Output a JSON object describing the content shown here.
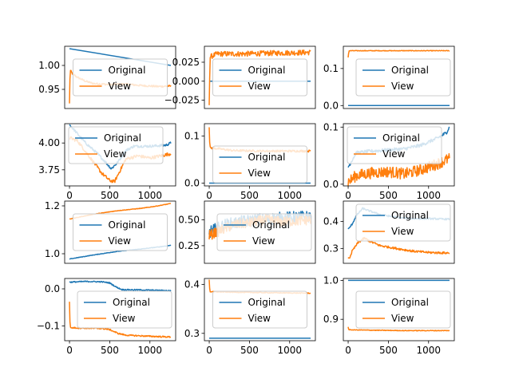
{
  "colors": {
    "original": "#1f77b4",
    "view": "#ff7f0e",
    "frame": "#000000",
    "background": "#ffffff"
  },
  "legend_labels": [
    "Original",
    "View"
  ],
  "chart_data": [
    {
      "type": "line",
      "xlim": [
        -60,
        1320
      ],
      "ylim": [
        0.91,
        1.04
      ],
      "xticks": [],
      "xtick_labels": [],
      "yticks": [
        0.95,
        1.0
      ],
      "ytick_labels": [
        "0.95",
        "1.00"
      ],
      "legend_loc": "center",
      "series": [
        {
          "name": "Original",
          "points": [
            [
              0,
              1.035
            ],
            [
              50,
              1.03
            ],
            [
              100,
              1.022
            ],
            [
              150,
              1.014
            ],
            [
              200,
              1.007
            ],
            [
              250,
              1.0
            ],
            [
              1260,
              1.0
            ]
          ]
        },
        {
          "name": "View",
          "points": [
            [
              0,
              0.92
            ],
            [
              8,
              0.99
            ],
            [
              40,
              0.982
            ],
            [
              100,
              0.975
            ],
            [
              200,
              0.967
            ],
            [
              300,
              0.962
            ],
            [
              500,
              0.96
            ],
            [
              700,
              0.961
            ],
            [
              900,
              0.958
            ],
            [
              1100,
              0.956
            ],
            [
              1260,
              0.957
            ]
          ],
          "noise": 0.002
        }
      ]
    },
    {
      "type": "line",
      "xlim": [
        -60,
        1320
      ],
      "ylim": [
        -0.036,
        0.046
      ],
      "xticks": [],
      "xtick_labels": [],
      "yticks": [
        -0.025,
        0.0,
        0.025
      ],
      "ytick_labels": [
        "−0.025",
        "0.000",
        "0.025"
      ],
      "legend_loc": "center",
      "series": [
        {
          "name": "Original",
          "points": [
            [
              0,
              0.0
            ],
            [
              1260,
              0.0
            ]
          ]
        },
        {
          "name": "View",
          "points": [
            [
              0,
              -0.03
            ],
            [
              10,
              0.032
            ],
            [
              100,
              0.036
            ],
            [
              400,
              0.036
            ],
            [
              800,
              0.037
            ],
            [
              1260,
              0.038
            ]
          ],
          "noise": 0.0035
        }
      ]
    },
    {
      "type": "line",
      "xlim": [
        -60,
        1320
      ],
      "ylim": [
        -0.008,
        0.16
      ],
      "xticks": [],
      "xtick_labels": [],
      "yticks": [
        0.0,
        0.1
      ],
      "ytick_labels": [
        "0.0",
        "0.1"
      ],
      "legend_loc": "center right",
      "series": [
        {
          "name": "Original",
          "points": [
            [
              0,
              0.0
            ],
            [
              1260,
              0.0
            ]
          ]
        },
        {
          "name": "View",
          "points": [
            [
              0,
              0.13
            ],
            [
              10,
              0.148
            ],
            [
              1260,
              0.148
            ]
          ],
          "noise": 0.0008
        }
      ]
    },
    {
      "type": "line",
      "xlim": [
        -60,
        1320
      ],
      "ylim": [
        3.6,
        4.18
      ],
      "xticks": [
        0,
        500,
        1000
      ],
      "xtick_labels": [
        "0",
        "500",
        "1000"
      ],
      "yticks": [
        3.75,
        4.0
      ],
      "ytick_labels": [
        "3.75",
        "4.00"
      ],
      "legend_loc": "upper left",
      "series": [
        {
          "name": "Original",
          "points": [
            [
              0,
              4.17
            ],
            [
              60,
              4.12
            ],
            [
              200,
              4.0
            ],
            [
              350,
              3.9
            ],
            [
              450,
              3.82
            ],
            [
              520,
              3.76
            ],
            [
              600,
              3.82
            ],
            [
              700,
              3.93
            ],
            [
              800,
              3.97
            ],
            [
              1000,
              3.97
            ],
            [
              1200,
              3.98
            ],
            [
              1260,
              4.0
            ]
          ],
          "noise": 0.012
        },
        {
          "name": "View",
          "points": [
            [
              0,
              4.05
            ],
            [
              100,
              4.02
            ],
            [
              200,
              3.92
            ],
            [
              300,
              3.82
            ],
            [
              400,
              3.72
            ],
            [
              500,
              3.65
            ],
            [
              560,
              3.64
            ],
            [
              620,
              3.73
            ],
            [
              700,
              3.85
            ],
            [
              850,
              3.88
            ],
            [
              1000,
              3.86
            ],
            [
              1260,
              3.9
            ]
          ],
          "noise": 0.015
        }
      ]
    },
    {
      "type": "line",
      "xlim": [
        -60,
        1320
      ],
      "ylim": [
        -0.006,
        0.126
      ],
      "xticks": [
        0,
        500,
        1000
      ],
      "xtick_labels": [
        "0",
        "500",
        "1000"
      ],
      "yticks": [
        0.0,
        0.1
      ],
      "ytick_labels": [
        "0.0",
        "0.1"
      ],
      "legend_loc": "lower center",
      "series": [
        {
          "name": "Original",
          "points": [
            [
              0,
              0.0
            ],
            [
              1260,
              0.0
            ]
          ]
        },
        {
          "name": "View",
          "points": [
            [
              0,
              0.12
            ],
            [
              8,
              0.075
            ],
            [
              300,
              0.069
            ],
            [
              700,
              0.068
            ],
            [
              1260,
              0.068
            ]
          ],
          "noise": 0.0022
        }
      ]
    },
    {
      "type": "line",
      "xlim": [
        -60,
        1320
      ],
      "ylim": [
        -0.003,
        0.106
      ],
      "xticks": [
        0,
        500,
        1000
      ],
      "xtick_labels": [
        "0",
        "500",
        "1000"
      ],
      "yticks": [
        0.0,
        0.1
      ],
      "ytick_labels": [
        "0.0",
        "0.1"
      ],
      "legend_loc": "upper left",
      "series": [
        {
          "name": "Original",
          "points": [
            [
              0,
              0.03
            ],
            [
              100,
              0.055
            ],
            [
              300,
              0.058
            ],
            [
              500,
              0.06
            ],
            [
              700,
              0.062
            ],
            [
              900,
              0.068
            ],
            [
              1100,
              0.08
            ],
            [
              1220,
              0.09
            ],
            [
              1260,
              0.1
            ]
          ],
          "noise": 0.003
        },
        {
          "name": "View",
          "points": [
            [
              0,
              0.004
            ],
            [
              100,
              0.015
            ],
            [
              300,
              0.02
            ],
            [
              500,
              0.022
            ],
            [
              700,
              0.018
            ],
            [
              900,
              0.025
            ],
            [
              1100,
              0.035
            ],
            [
              1260,
              0.045
            ]
          ],
          "noise": 0.01
        }
      ]
    },
    {
      "type": "line",
      "xlim": [
        -60,
        1320
      ],
      "ylim": [
        0.96,
        1.22
      ],
      "xticks": [],
      "xtick_labels": [],
      "yticks": [
        1.0,
        1.2
      ],
      "ytick_labels": [
        "1.0",
        "1.2"
      ],
      "legend_loc": "center",
      "series": [
        {
          "name": "Original",
          "points": [
            [
              0,
              0.978
            ],
            [
              300,
              0.995
            ],
            [
              600,
              1.01
            ],
            [
              900,
              1.02
            ],
            [
              1100,
              1.028
            ],
            [
              1260,
              1.035
            ]
          ],
          "noise": 0.001
        },
        {
          "name": "View",
          "points": [
            [
              0,
              1.145
            ],
            [
              300,
              1.165
            ],
            [
              600,
              1.18
            ],
            [
              900,
              1.19
            ],
            [
              1100,
              1.2
            ],
            [
              1260,
              1.21
            ]
          ],
          "noise": 0.001
        }
      ]
    },
    {
      "type": "line",
      "xlim": [
        -60,
        1320
      ],
      "ylim": [
        0.08,
        0.68
      ],
      "xticks": [],
      "xtick_labels": [],
      "yticks": [
        0.25,
        0.5
      ],
      "ytick_labels": [
        "0.25",
        "0.50"
      ],
      "legend_loc": "center right",
      "series": [
        {
          "name": "Original",
          "points": [
            [
              0,
              0.38
            ],
            [
              200,
              0.45
            ],
            [
              400,
              0.48
            ],
            [
              600,
              0.5
            ],
            [
              800,
              0.51
            ],
            [
              1000,
              0.52
            ],
            [
              1260,
              0.53
            ]
          ],
          "noise": 0.06
        },
        {
          "name": "View",
          "points": [
            [
              0,
              0.35
            ],
            [
              150,
              0.4
            ],
            [
              300,
              0.45
            ],
            [
              500,
              0.47
            ],
            [
              700,
              0.5
            ],
            [
              900,
              0.48
            ],
            [
              1100,
              0.49
            ],
            [
              1260,
              0.5
            ]
          ],
          "noise": 0.05
        }
      ]
    },
    {
      "type": "line",
      "xlim": [
        -60,
        1320
      ],
      "ylim": [
        0.245,
        0.475
      ],
      "xticks": [],
      "xtick_labels": [],
      "yticks": [
        0.3,
        0.4
      ],
      "ytick_labels": [
        "0.3",
        "0.4"
      ],
      "legend_loc": "upper right",
      "series": [
        {
          "name": "Original",
          "points": [
            [
              0,
              0.37
            ],
            [
              50,
              0.39
            ],
            [
              100,
              0.42
            ],
            [
              180,
              0.448
            ],
            [
              250,
              0.44
            ],
            [
              400,
              0.425
            ],
            [
              600,
              0.415
            ],
            [
              800,
              0.41
            ],
            [
              1000,
              0.41
            ],
            [
              1260,
              0.408
            ]
          ],
          "noise": 0.003
        },
        {
          "name": "View",
          "points": [
            [
              0,
              0.27
            ],
            [
              10,
              0.26
            ],
            [
              50,
              0.29
            ],
            [
              120,
              0.32
            ],
            [
              200,
              0.338
            ],
            [
              280,
              0.325
            ],
            [
              400,
              0.31
            ],
            [
              600,
              0.3
            ],
            [
              800,
              0.29
            ],
            [
              1000,
              0.285
            ],
            [
              1260,
              0.283
            ]
          ],
          "noise": 0.004
        }
      ]
    },
    {
      "type": "line",
      "xlim": [
        -60,
        1320
      ],
      "ylim": [
        -0.14,
        0.028
      ],
      "xticks": [
        0,
        500,
        1000
      ],
      "xtick_labels": [
        "0",
        "500",
        "1000"
      ],
      "yticks": [
        -0.1,
        0.0
      ],
      "ytick_labels": [
        "−0.1",
        "0.0"
      ],
      "legend_loc": "center right",
      "series": [
        {
          "name": "Original",
          "points": [
            [
              0,
              0.018
            ],
            [
              200,
              0.02
            ],
            [
              400,
              0.019
            ],
            [
              500,
              0.016
            ],
            [
              580,
              0.005
            ],
            [
              650,
              -0.002
            ],
            [
              900,
              -0.003
            ],
            [
              1260,
              -0.005
            ]
          ],
          "noise": 0.0015
        },
        {
          "name": "View",
          "points": [
            [
              0,
              -0.035
            ],
            [
              8,
              -0.105
            ],
            [
              200,
              -0.106
            ],
            [
              400,
              -0.107
            ],
            [
              500,
              -0.11
            ],
            [
              600,
              -0.12
            ],
            [
              700,
              -0.125
            ],
            [
              1000,
              -0.128
            ],
            [
              1260,
              -0.13
            ]
          ],
          "noise": 0.0018
        }
      ]
    },
    {
      "type": "line",
      "xlim": [
        -60,
        1320
      ],
      "ylim": [
        0.285,
        0.412
      ],
      "xticks": [
        0,
        500,
        1000
      ],
      "xtick_labels": [
        "0",
        "500",
        "1000"
      ],
      "yticks": [
        0.3,
        0.4
      ],
      "ytick_labels": [
        "0.3",
        "0.4"
      ],
      "legend_loc": "center",
      "series": [
        {
          "name": "Original",
          "points": [
            [
              0,
              0.29
            ],
            [
              1260,
              0.29
            ]
          ]
        },
        {
          "name": "View",
          "points": [
            [
              0,
              0.41
            ],
            [
              8,
              0.385
            ],
            [
              300,
              0.384
            ],
            [
              700,
              0.383
            ],
            [
              1260,
              0.382
            ]
          ],
          "noise": 0.0008
        }
      ]
    },
    {
      "type": "line",
      "xlim": [
        -60,
        1320
      ],
      "ylim": [
        0.845,
        1.005
      ],
      "xticks": [
        0,
        500,
        1000
      ],
      "xtick_labels": [
        "0",
        "500",
        "1000"
      ],
      "yticks": [
        0.9,
        1.0
      ],
      "ytick_labels": [
        "0.9",
        "1.0"
      ],
      "legend_loc": "center right",
      "series": [
        {
          "name": "Original",
          "points": [
            [
              0,
              1.0
            ],
            [
              1260,
              1.0
            ]
          ]
        },
        {
          "name": "View",
          "points": [
            [
              0,
              0.88
            ],
            [
              10,
              0.873
            ],
            [
              300,
              0.872
            ],
            [
              700,
              0.871
            ],
            [
              1260,
              0.871
            ]
          ],
          "noise": 0.0008
        }
      ]
    }
  ]
}
